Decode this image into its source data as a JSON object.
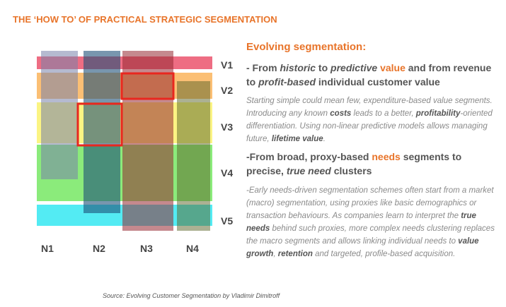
{
  "title": "THE ‘HOW TO’ OF PRACTICAL STRATEGIC SEGMENTATION",
  "diagram": {
    "rows": [
      "V1",
      "V2",
      "V3",
      "V4",
      "V5"
    ],
    "columns": [
      "N1",
      "N2",
      "N3",
      "N4"
    ]
  },
  "text": {
    "heading": "Evolving segmentation:",
    "point1": {
      "title": [
        "- From ",
        "historic",
        " to ",
        "predictive",
        " ",
        "value",
        " and from revenue to ",
        "profit-based",
        " individual customer value"
      ],
      "body": [
        "Starting simple could mean few, expenditure-based value segments. Introducing any known ",
        "costs",
        " leads to a better, ",
        "profitability",
        "-oriented differentiation. Using non-linear predictive models allows managing future, ",
        "lifetime value",
        "."
      ]
    },
    "point2": {
      "title": [
        "-From broad, proxy-based ",
        "needs",
        " segments to precise, ",
        "true need",
        "  clusters"
      ],
      "body": [
        "-Early needs-driven segmentation schemes often start from a market (macro) segmentation, using proxies like basic demographics or transaction behaviours. As companies learn to interpret the ",
        "true needs",
        " behind such proxies, more complex needs clustering replaces the macro segments and allows linking individual needs to ",
        "value growth",
        ", ",
        "retention",
        " and targeted, profile-based acquisition."
      ]
    }
  },
  "source": "Source: Evolving Customer Segmentation by Vladimir Dimitroff"
}
